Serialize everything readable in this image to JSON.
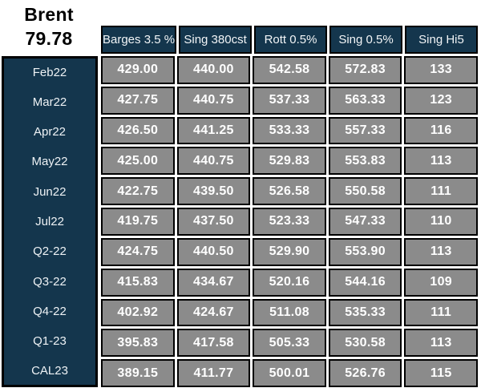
{
  "brent": {
    "label": "Brent",
    "price": "79.78"
  },
  "table": {
    "columns": [
      "Barges 3.5 %",
      "Sing 380cst",
      "Rott 0.5%",
      "Sing 0.5%",
      "Sing Hi5"
    ],
    "rows": [
      {
        "label": "Feb22",
        "values": [
          "429.00",
          "440.00",
          "542.58",
          "572.83",
          "133"
        ]
      },
      {
        "label": "Mar22",
        "values": [
          "427.75",
          "440.75",
          "537.33",
          "563.33",
          "123"
        ]
      },
      {
        "label": "Apr22",
        "values": [
          "426.50",
          "441.25",
          "533.33",
          "557.33",
          "116"
        ]
      },
      {
        "label": "May22",
        "values": [
          "425.00",
          "440.75",
          "529.83",
          "553.83",
          "113"
        ]
      },
      {
        "label": "Jun22",
        "values": [
          "422.75",
          "439.50",
          "526.58",
          "550.58",
          "111"
        ]
      },
      {
        "label": "Jul22",
        "values": [
          "419.75",
          "437.50",
          "523.33",
          "547.33",
          "110"
        ]
      },
      {
        "label": "Q2-22",
        "values": [
          "424.75",
          "440.50",
          "529.90",
          "553.90",
          "113"
        ]
      },
      {
        "label": "Q3-22",
        "values": [
          "415.83",
          "434.67",
          "520.16",
          "544.16",
          "109"
        ]
      },
      {
        "label": "Q4-22",
        "values": [
          "402.92",
          "424.67",
          "511.08",
          "535.33",
          "111"
        ]
      },
      {
        "label": "Q1-23",
        "values": [
          "395.83",
          "417.58",
          "505.33",
          "530.58",
          "113"
        ]
      },
      {
        "label": "CAL23",
        "values": [
          "389.15",
          "411.77",
          "500.01",
          "526.76",
          "115"
        ]
      }
    ]
  },
  "colors": {
    "navy": "#14364d",
    "cell_gray": "#8b8b8b",
    "border": "#000000",
    "background": "#ffffff"
  }
}
